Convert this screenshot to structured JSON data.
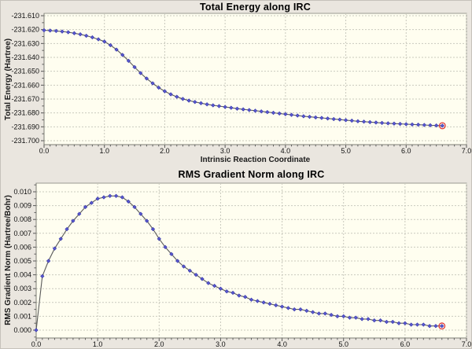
{
  "colors": {
    "window_bg": "#eae6df",
    "plot_bg": "#fffef0",
    "grid": "#c9c9bd",
    "plot_border": "#9a9a92",
    "tick_mark": "#555555",
    "line": "#5a5a5a",
    "marker_fill": "#5a5ad0",
    "marker_edge": "#3030a8",
    "highlight_ring": "#e03a3a",
    "title_text": "#000000",
    "tick_text": "#111111"
  },
  "chart_data": [
    {
      "type": "line",
      "title": "Total Energy along IRC",
      "xlabel": "Intrinsic Reaction Coordinate",
      "ylabel": "Total Energy (Hartree)",
      "xlim": [
        0.0,
        7.0
      ],
      "ylim": [
        -231.7,
        -231.61
      ],
      "x_tick_labels": [
        "0.0",
        "1.0",
        "2.0",
        "3.0",
        "4.0",
        "5.0",
        "6.0",
        "7.0"
      ],
      "y_tick_labels": [
        "-231.610",
        "-231.620",
        "-231.630",
        "-231.640",
        "-231.650",
        "-231.660",
        "-231.670",
        "-231.680",
        "-231.690",
        "-231.700"
      ],
      "grid": "dotted",
      "marker": "diamond",
      "legend": "none",
      "highlight_last_point": true,
      "x_start": 0.0,
      "x_step": 0.1,
      "values": [
        -231.6205,
        -231.6207,
        -231.621,
        -231.6214,
        -231.6219,
        -231.6226,
        -231.6234,
        -231.6244,
        -231.6256,
        -231.627,
        -231.6286,
        -231.6312,
        -231.6344,
        -231.6382,
        -231.6425,
        -231.647,
        -231.6513,
        -231.6552,
        -231.6587,
        -231.6618,
        -231.6644,
        -231.6666,
        -231.6684,
        -231.6699,
        -231.6711,
        -231.6721,
        -231.673,
        -231.6738,
        -231.6745,
        -231.6751,
        -231.6757,
        -231.6763,
        -231.6769,
        -231.6774,
        -231.6779,
        -231.6784,
        -231.6789,
        -231.6794,
        -231.6799,
        -231.6804,
        -231.6809,
        -231.6814,
        -231.6819,
        -231.6824,
        -231.6828,
        -231.6832,
        -231.6836,
        -231.684,
        -231.6844,
        -231.6848,
        -231.6852,
        -231.6856,
        -231.686,
        -231.6863,
        -231.6866,
        -231.6869,
        -231.6872,
        -231.6875,
        -231.6877,
        -231.6879,
        -231.6881,
        -231.6883,
        -231.6885,
        -231.6887,
        -231.6889,
        -231.689,
        -231.6892
      ]
    },
    {
      "type": "line",
      "title": "RMS Gradient Norm along IRC",
      "xlabel": "",
      "ylabel": "RMS Gradient Norm (Hartree/Bohr)",
      "xlim": [
        0.0,
        7.0
      ],
      "ylim": [
        0.0,
        0.01
      ],
      "x_tick_labels": [
        "0.0",
        "1.0",
        "2.0",
        "3.0",
        "4.0",
        "5.0",
        "6.0",
        "7.0"
      ],
      "y_tick_labels": [
        "0.010",
        "0.009",
        "0.008",
        "0.007",
        "0.006",
        "0.005",
        "0.004",
        "0.003",
        "0.002",
        "0.001",
        "0.000"
      ],
      "grid": "dotted",
      "marker": "diamond",
      "legend": "none",
      "highlight_last_point": true,
      "x_start": 0.0,
      "x_step": 0.1,
      "values": [
        0.0,
        0.0039,
        0.005,
        0.0059,
        0.0066,
        0.0073,
        0.0079,
        0.0084,
        0.0089,
        0.0092,
        0.0095,
        0.0096,
        0.0097,
        0.0097,
        0.0096,
        0.0093,
        0.0089,
        0.0084,
        0.0079,
        0.0073,
        0.0066,
        0.006,
        0.0055,
        0.005,
        0.0046,
        0.0043,
        0.004,
        0.0037,
        0.0034,
        0.0032,
        0.003,
        0.0028,
        0.0027,
        0.0025,
        0.0024,
        0.0022,
        0.0021,
        0.002,
        0.0019,
        0.0018,
        0.0017,
        0.0016,
        0.0015,
        0.0015,
        0.0014,
        0.0013,
        0.0012,
        0.0012,
        0.0011,
        0.001,
        0.001,
        0.0009,
        0.0009,
        0.0008,
        0.0008,
        0.0007,
        0.0007,
        0.0006,
        0.0006,
        0.0005,
        0.0005,
        0.0004,
        0.0004,
        0.0004,
        0.0003,
        0.0003,
        0.0003
      ]
    }
  ]
}
